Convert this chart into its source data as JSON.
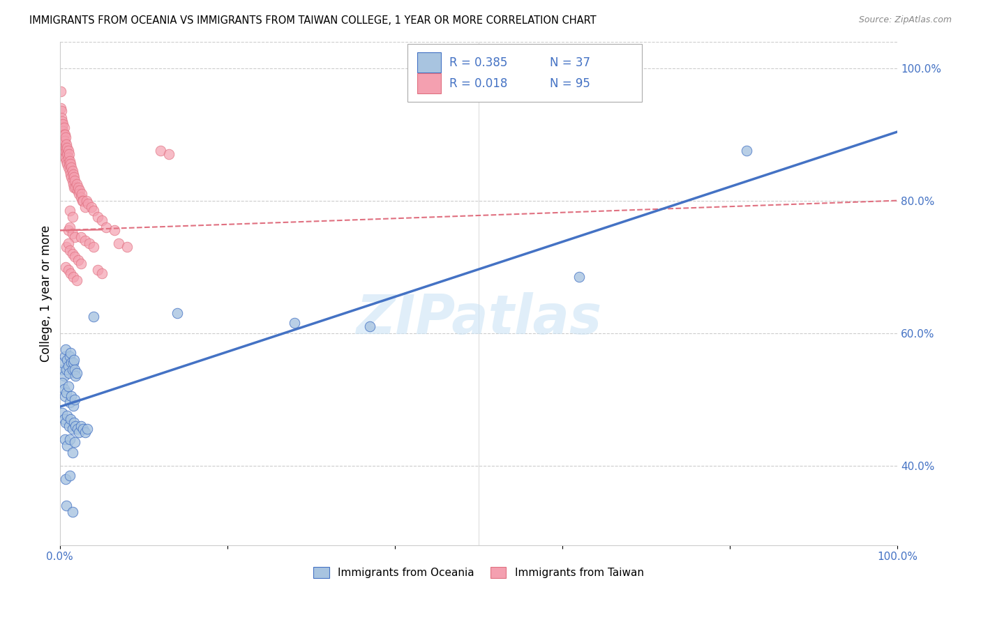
{
  "title": "IMMIGRANTS FROM OCEANIA VS IMMIGRANTS FROM TAIWAN COLLEGE, 1 YEAR OR MORE CORRELATION CHART",
  "source": "Source: ZipAtlas.com",
  "ylabel": "College, 1 year or more",
  "xlim": [
    0,
    1.0
  ],
  "ylim": [
    0.28,
    1.04
  ],
  "xtick_labels": [
    "0.0%",
    "",
    "",
    "",
    "",
    "100.0%"
  ],
  "xtick_vals": [
    0.0,
    0.2,
    0.4,
    0.6,
    0.8,
    1.0
  ],
  "ytick_labels": [
    "40.0%",
    "60.0%",
    "80.0%",
    "100.0%"
  ],
  "ytick_vals": [
    0.4,
    0.6,
    0.8,
    1.0
  ],
  "watermark": "ZIPatlas",
  "oceania_color": "#a8c4e0",
  "taiwan_color": "#f4a0b0",
  "line_oceania_color": "#4472c4",
  "line_taiwan_color": "#e07080",
  "background_color": "#ffffff",
  "oceania_scatter": [
    [
      0.003,
      0.545
    ],
    [
      0.004,
      0.555
    ],
    [
      0.005,
      0.535
    ],
    [
      0.006,
      0.565
    ],
    [
      0.007,
      0.575
    ],
    [
      0.008,
      0.545
    ],
    [
      0.009,
      0.56
    ],
    [
      0.01,
      0.55
    ],
    [
      0.011,
      0.54
    ],
    [
      0.012,
      0.565
    ],
    [
      0.013,
      0.57
    ],
    [
      0.014,
      0.555
    ],
    [
      0.015,
      0.545
    ],
    [
      0.016,
      0.555
    ],
    [
      0.017,
      0.56
    ],
    [
      0.018,
      0.545
    ],
    [
      0.019,
      0.535
    ],
    [
      0.02,
      0.54
    ],
    [
      0.003,
      0.525
    ],
    [
      0.005,
      0.515
    ],
    [
      0.006,
      0.505
    ],
    [
      0.008,
      0.51
    ],
    [
      0.01,
      0.52
    ],
    [
      0.012,
      0.495
    ],
    [
      0.014,
      0.505
    ],
    [
      0.016,
      0.49
    ],
    [
      0.018,
      0.5
    ],
    [
      0.003,
      0.48
    ],
    [
      0.005,
      0.47
    ],
    [
      0.007,
      0.465
    ],
    [
      0.009,
      0.475
    ],
    [
      0.011,
      0.46
    ],
    [
      0.013,
      0.47
    ],
    [
      0.015,
      0.455
    ],
    [
      0.017,
      0.465
    ],
    [
      0.019,
      0.46
    ],
    [
      0.021,
      0.455
    ],
    [
      0.023,
      0.45
    ],
    [
      0.025,
      0.46
    ],
    [
      0.028,
      0.455
    ],
    [
      0.03,
      0.45
    ],
    [
      0.033,
      0.455
    ],
    [
      0.006,
      0.44
    ],
    [
      0.009,
      0.43
    ],
    [
      0.012,
      0.44
    ],
    [
      0.015,
      0.42
    ],
    [
      0.018,
      0.435
    ],
    [
      0.007,
      0.38
    ],
    [
      0.012,
      0.385
    ],
    [
      0.008,
      0.34
    ],
    [
      0.015,
      0.33
    ],
    [
      0.04,
      0.625
    ],
    [
      0.14,
      0.63
    ],
    [
      0.28,
      0.615
    ],
    [
      0.37,
      0.61
    ],
    [
      0.62,
      0.685
    ],
    [
      0.82,
      0.875
    ]
  ],
  "taiwan_scatter": [
    [
      0.001,
      0.965
    ],
    [
      0.001,
      0.94
    ],
    [
      0.002,
      0.935
    ],
    [
      0.002,
      0.925
    ],
    [
      0.002,
      0.915
    ],
    [
      0.002,
      0.905
    ],
    [
      0.003,
      0.92
    ],
    [
      0.003,
      0.91
    ],
    [
      0.003,
      0.9
    ],
    [
      0.003,
      0.89
    ],
    [
      0.004,
      0.915
    ],
    [
      0.004,
      0.905
    ],
    [
      0.004,
      0.895
    ],
    [
      0.004,
      0.885
    ],
    [
      0.005,
      0.91
    ],
    [
      0.005,
      0.9
    ],
    [
      0.005,
      0.89
    ],
    [
      0.005,
      0.875
    ],
    [
      0.006,
      0.9
    ],
    [
      0.006,
      0.89
    ],
    [
      0.006,
      0.875
    ],
    [
      0.006,
      0.865
    ],
    [
      0.007,
      0.895
    ],
    [
      0.007,
      0.88
    ],
    [
      0.007,
      0.865
    ],
    [
      0.008,
      0.885
    ],
    [
      0.008,
      0.875
    ],
    [
      0.008,
      0.86
    ],
    [
      0.009,
      0.88
    ],
    [
      0.009,
      0.87
    ],
    [
      0.009,
      0.855
    ],
    [
      0.01,
      0.875
    ],
    [
      0.01,
      0.865
    ],
    [
      0.01,
      0.85
    ],
    [
      0.011,
      0.87
    ],
    [
      0.011,
      0.855
    ],
    [
      0.012,
      0.86
    ],
    [
      0.012,
      0.845
    ],
    [
      0.013,
      0.855
    ],
    [
      0.013,
      0.84
    ],
    [
      0.014,
      0.85
    ],
    [
      0.014,
      0.835
    ],
    [
      0.015,
      0.845
    ],
    [
      0.015,
      0.83
    ],
    [
      0.016,
      0.84
    ],
    [
      0.016,
      0.825
    ],
    [
      0.017,
      0.835
    ],
    [
      0.017,
      0.82
    ],
    [
      0.018,
      0.83
    ],
    [
      0.019,
      0.82
    ],
    [
      0.02,
      0.825
    ],
    [
      0.021,
      0.815
    ],
    [
      0.022,
      0.82
    ],
    [
      0.023,
      0.81
    ],
    [
      0.024,
      0.815
    ],
    [
      0.025,
      0.805
    ],
    [
      0.026,
      0.81
    ],
    [
      0.027,
      0.8
    ],
    [
      0.028,
      0.8
    ],
    [
      0.03,
      0.79
    ],
    [
      0.032,
      0.8
    ],
    [
      0.034,
      0.795
    ],
    [
      0.038,
      0.79
    ],
    [
      0.04,
      0.785
    ],
    [
      0.045,
      0.775
    ],
    [
      0.05,
      0.77
    ],
    [
      0.012,
      0.785
    ],
    [
      0.015,
      0.775
    ],
    [
      0.01,
      0.755
    ],
    [
      0.012,
      0.76
    ],
    [
      0.015,
      0.75
    ],
    [
      0.018,
      0.745
    ],
    [
      0.008,
      0.73
    ],
    [
      0.01,
      0.735
    ],
    [
      0.012,
      0.725
    ],
    [
      0.015,
      0.72
    ],
    [
      0.018,
      0.715
    ],
    [
      0.022,
      0.71
    ],
    [
      0.025,
      0.705
    ],
    [
      0.007,
      0.7
    ],
    [
      0.01,
      0.695
    ],
    [
      0.013,
      0.69
    ],
    [
      0.016,
      0.685
    ],
    [
      0.02,
      0.68
    ],
    [
      0.025,
      0.745
    ],
    [
      0.03,
      0.74
    ],
    [
      0.035,
      0.735
    ],
    [
      0.04,
      0.73
    ],
    [
      0.12,
      0.875
    ],
    [
      0.13,
      0.87
    ],
    [
      0.055,
      0.76
    ],
    [
      0.065,
      0.755
    ],
    [
      0.07,
      0.735
    ],
    [
      0.08,
      0.73
    ],
    [
      0.045,
      0.695
    ],
    [
      0.05,
      0.69
    ]
  ]
}
